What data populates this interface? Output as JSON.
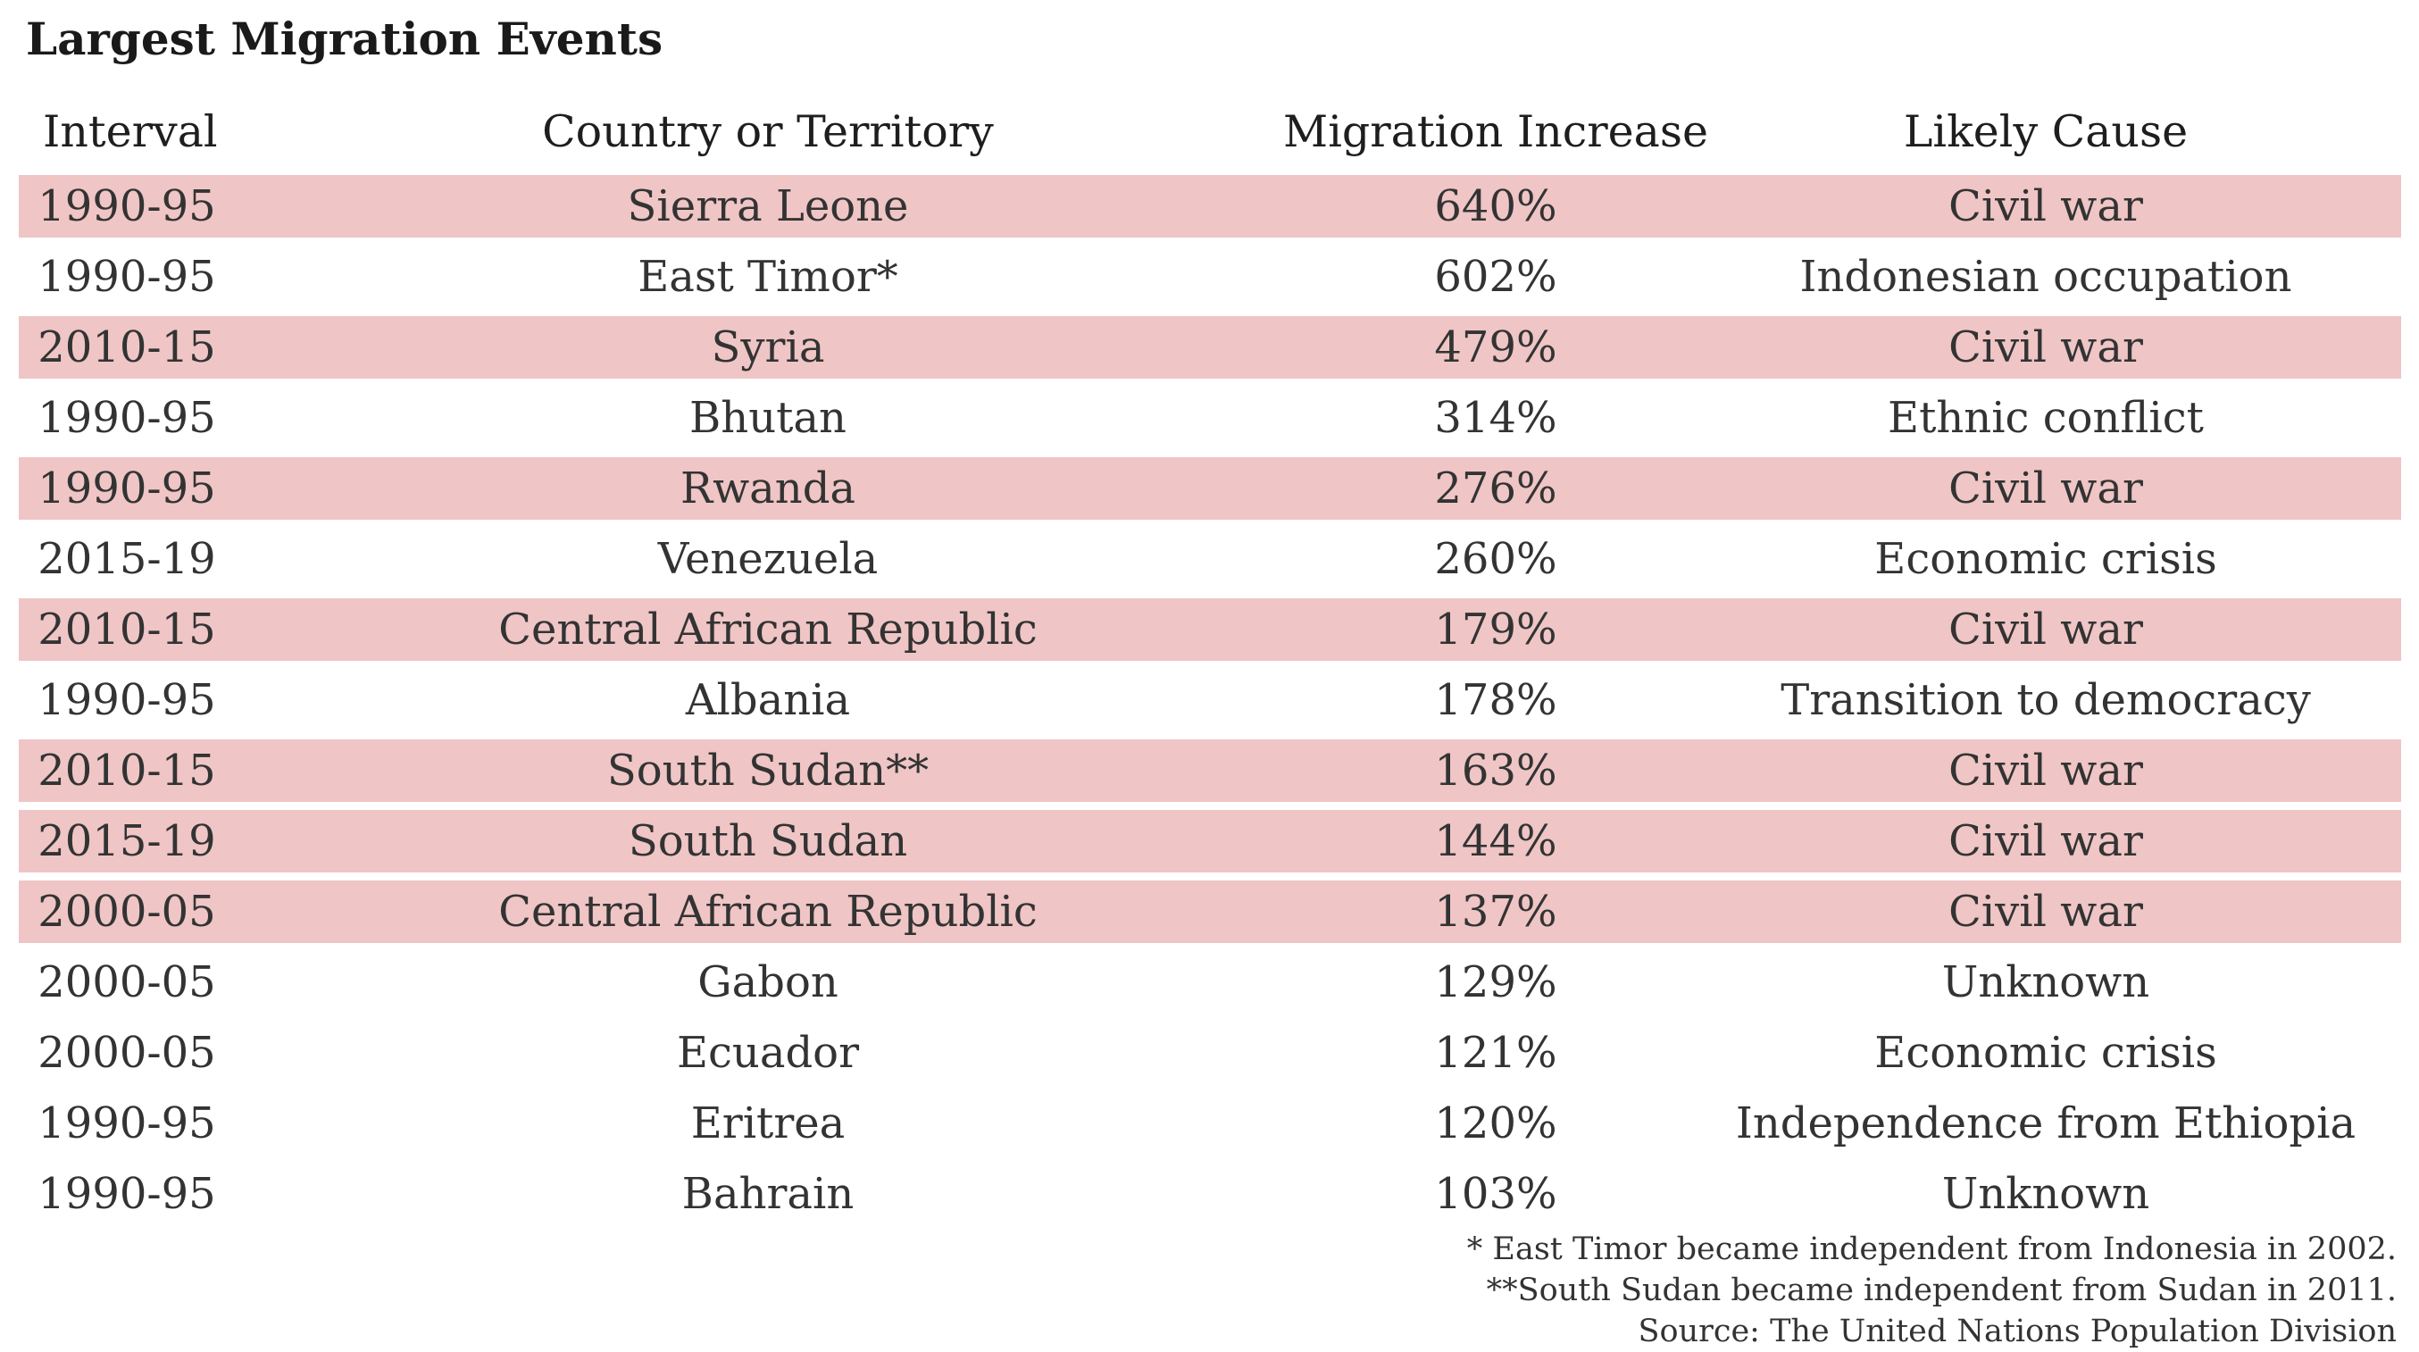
{
  "chart_data": {
    "type": "table",
    "title": "Largest Migration Events",
    "columns": [
      "Interval",
      "Country or Territory",
      "Migration Increase",
      "Likely Cause"
    ],
    "rows": [
      {
        "interval": "1990-95",
        "country": "Sierra Leone",
        "increase": "640%",
        "cause": "Civil war",
        "shaded": true
      },
      {
        "interval": "1990-95",
        "country": "East Timor*",
        "increase": "602%",
        "cause": "Indonesian occupation",
        "shaded": false
      },
      {
        "interval": "2010-15",
        "country": "Syria",
        "increase": "479%",
        "cause": "Civil war",
        "shaded": true
      },
      {
        "interval": "1990-95",
        "country": "Bhutan",
        "increase": "314%",
        "cause": "Ethnic conflict",
        "shaded": false
      },
      {
        "interval": "1990-95",
        "country": "Rwanda",
        "increase": "276%",
        "cause": "Civil war",
        "shaded": true
      },
      {
        "interval": "2015-19",
        "country": "Venezuela",
        "increase": "260%",
        "cause": "Economic crisis",
        "shaded": false
      },
      {
        "interval": "2010-15",
        "country": "Central African Republic",
        "increase": "179%",
        "cause": "Civil war",
        "shaded": true
      },
      {
        "interval": "1990-95",
        "country": "Albania",
        "increase": "178%",
        "cause": "Transition to democracy",
        "shaded": false
      },
      {
        "interval": "2010-15",
        "country": "South Sudan**",
        "increase": "163%",
        "cause": "Civil war",
        "shaded": true
      },
      {
        "interval": "2015-19",
        "country": "South Sudan",
        "increase": "144%",
        "cause": "Civil war",
        "shaded": true
      },
      {
        "interval": "2000-05",
        "country": "Central African Republic",
        "increase": "137%",
        "cause": "Civil war",
        "shaded": true
      },
      {
        "interval": "2000-05",
        "country": "Gabon",
        "increase": "129%",
        "cause": "Unknown",
        "shaded": false
      },
      {
        "interval": "2000-05",
        "country": "Ecuador",
        "increase": "121%",
        "cause": "Economic crisis",
        "shaded": false
      },
      {
        "interval": "1990-95",
        "country": "Eritrea",
        "increase": "120%",
        "cause": "Independence from Ethiopia",
        "shaded": false
      },
      {
        "interval": "1990-95",
        "country": "Bahrain",
        "increase": "103%",
        "cause": "Unknown",
        "shaded": false
      }
    ],
    "notes": [
      "* East Timor became independent from Indonesia in 2002.",
      "**South Sudan became independent from Sudan in 2011.",
      "Source: The United Nations Population Division"
    ],
    "colors": {
      "shaded_row": "#efc5c6",
      "text": "#333333"
    }
  }
}
